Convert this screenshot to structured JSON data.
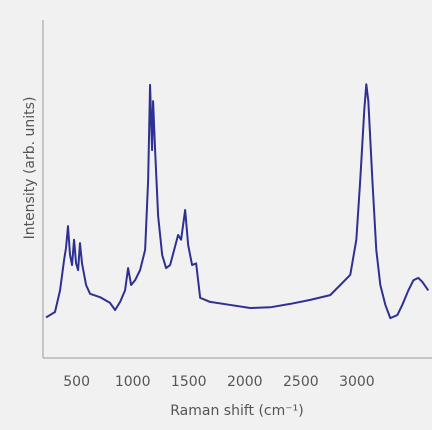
{
  "chart_data": {
    "type": "line",
    "xlabel": "Raman shift (cm⁻¹)",
    "ylabel": "Intensity (arb. units)",
    "x": [
      227,
      307,
      352,
      388,
      405,
      423,
      441,
      459,
      477,
      495,
      513,
      530,
      548,
      584,
      620,
      709,
      798,
      843,
      888,
      932,
      959,
      986,
      1021,
      1066,
      1111,
      1138,
      1155,
      1173,
      1182,
      1200,
      1227,
      1263,
      1298,
      1334,
      1370,
      1405,
      1432,
      1468,
      1495,
      1530,
      1566,
      1602,
      1691,
      1870,
      2048,
      2227,
      2405,
      2584,
      2762,
      2852,
      2941,
      2995,
      3030,
      3066,
      3084,
      3102,
      3138,
      3173,
      3209,
      3254,
      3298,
      3361,
      3405,
      3459,
      3504,
      3548,
      3584,
      3637
    ],
    "values": [
      12,
      13.6,
      20,
      29,
      32.5,
      39,
      30.5,
      27.5,
      35,
      28,
      26,
      34,
      28,
      21.6,
      19,
      18,
      16.3,
      14.2,
      16.6,
      20,
      26.6,
      21.6,
      23,
      26,
      32,
      52.7,
      80.8,
      61.5,
      76,
      61.5,
      42,
      30.5,
      26.6,
      27.5,
      32,
      36.4,
      35,
      43.8,
      33.4,
      27.5,
      28,
      17.8,
      16.6,
      15.7,
      14.8,
      15,
      16,
      17.2,
      18.6,
      21.6,
      24.6,
      35,
      52.7,
      73.4,
      81,
      76,
      52.7,
      32,
      21.6,
      15.7,
      11.8,
      12.7,
      15.7,
      20,
      23,
      23.7,
      22.5,
      20
    ],
    "color": "#2e3192",
    "xlim": [
      200,
      3670
    ],
    "xticks": [
      500,
      1000,
      1500,
      2000,
      2500,
      3000
    ],
    "ylim": [
      0,
      100
    ],
    "grid": false
  }
}
